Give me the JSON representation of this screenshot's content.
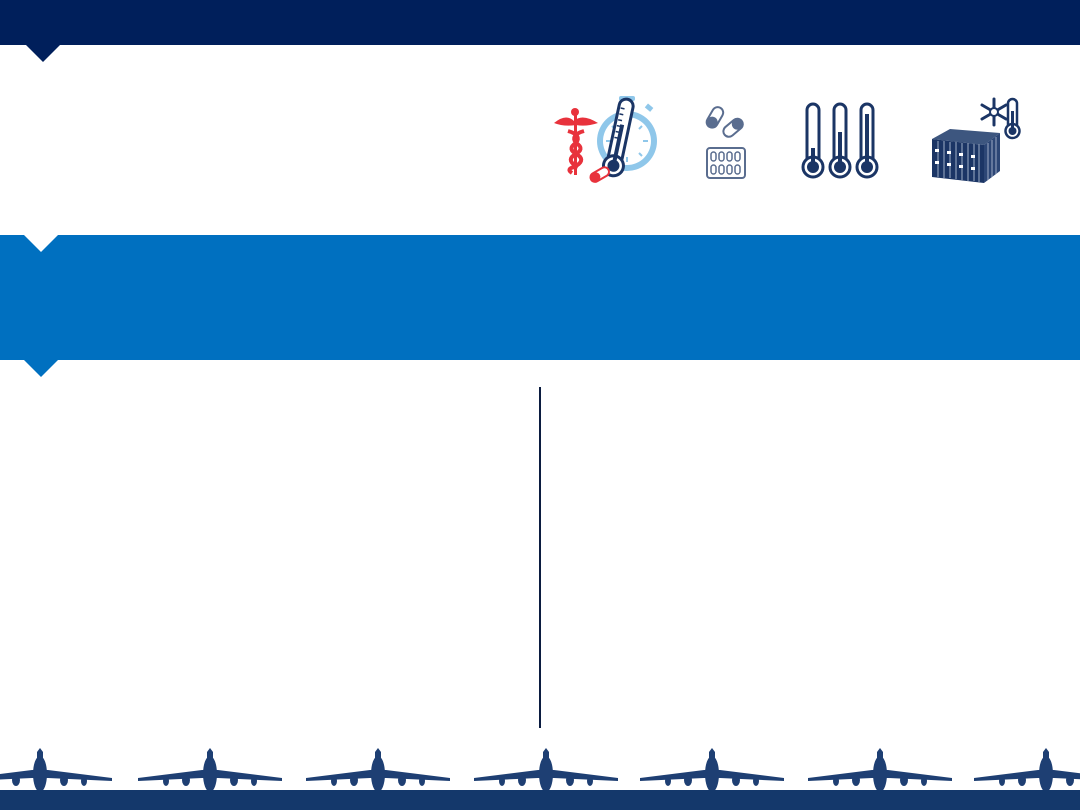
{
  "colors": {
    "navy": "#001f5b",
    "blue": "#0070c0",
    "footer": "#14386b",
    "plane": "#1e3f73",
    "icon_dark": "#1b3565",
    "icon_light": "#8fc7ea",
    "icon_red": "#e8323c"
  },
  "icons": [
    "caduceus-thermometer-stopwatch-icon",
    "pills-blister-icon",
    "three-thermometers-icon",
    "refrigerated-container-icon"
  ],
  "footer": {
    "decoration": "airplane-row-icon",
    "plane_count": 7
  }
}
